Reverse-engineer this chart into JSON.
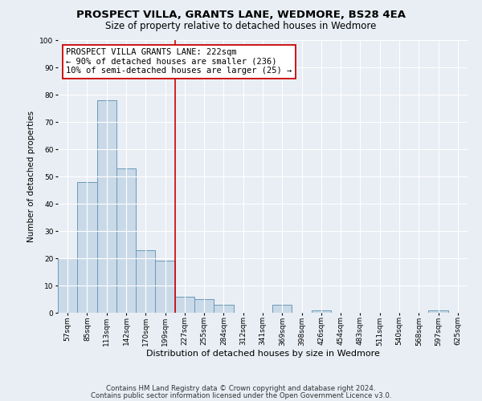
{
  "title": "PROSPECT VILLA, GRANTS LANE, WEDMORE, BS28 4EA",
  "subtitle": "Size of property relative to detached houses in Wedmore",
  "xlabel": "Distribution of detached houses by size in Wedmore",
  "ylabel": "Number of detached properties",
  "bin_labels": [
    "57sqm",
    "85sqm",
    "113sqm",
    "142sqm",
    "170sqm",
    "199sqm",
    "227sqm",
    "255sqm",
    "284sqm",
    "312sqm",
    "341sqm",
    "369sqm",
    "398sqm",
    "426sqm",
    "454sqm",
    "483sqm",
    "511sqm",
    "540sqm",
    "568sqm",
    "597sqm",
    "625sqm"
  ],
  "bar_values": [
    20,
    48,
    78,
    53,
    23,
    19,
    6,
    5,
    3,
    0,
    0,
    3,
    0,
    1,
    0,
    0,
    0,
    0,
    0,
    1,
    0
  ],
  "bar_color": "#c9d9e8",
  "bar_edge_color": "#6a9ab8",
  "bar_linewidth": 0.7,
  "vline_color": "#cc0000",
  "vline_linewidth": 1.2,
  "vline_index": 6,
  "annotation_title": "PROSPECT VILLA GRANTS LANE: 222sqm",
  "annotation_line2": "← 90% of detached houses are smaller (236)",
  "annotation_line3": "10% of semi-detached houses are larger (25) →",
  "annotation_box_color": "#cc0000",
  "ylim": [
    0,
    100
  ],
  "yticks": [
    0,
    10,
    20,
    30,
    40,
    50,
    60,
    70,
    80,
    90,
    100
  ],
  "footnote1": "Contains HM Land Registry data © Crown copyright and database right 2024.",
  "footnote2": "Contains public sector information licensed under the Open Government Licence v3.0.",
  "bg_color": "#e8eef4",
  "plot_bg_color": "#e8eef4",
  "grid_color": "#ffffff",
  "title_fontsize": 9.5,
  "subtitle_fontsize": 8.5,
  "xlabel_fontsize": 8,
  "ylabel_fontsize": 7.5,
  "tick_fontsize": 6.5,
  "annotation_fontsize": 7.5,
  "footnote_fontsize": 6.2
}
